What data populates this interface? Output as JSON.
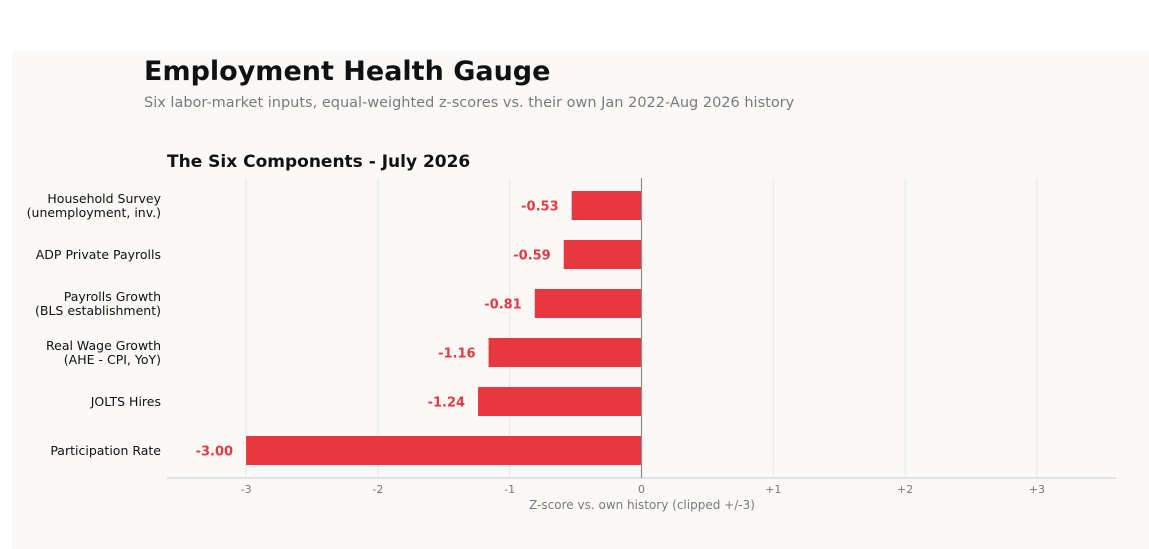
{
  "page": {
    "title": "Employment Health Gauge",
    "subtitle": "Six labor-market inputs, equal-weighted z-scores vs. their own Jan 2022-Aug 2026 history"
  },
  "colors": {
    "bar_negative": "#e8383f",
    "label_negative": "#e33a40",
    "background_panel": "#faf9f7",
    "grid": "#e6e6e6",
    "zero_line": "#8a8a8a",
    "axis": "#cccccc",
    "tick_text": "#777777"
  },
  "chart_data": {
    "type": "bar",
    "orientation": "horizontal",
    "title": "The Six Components - July 2026",
    "xlabel": "Z-score vs. own history (clipped +/-3)",
    "ylabel": "",
    "xlim": [
      -3.6,
      3.6
    ],
    "grid": true,
    "xticks": [
      -3,
      -2,
      -1,
      0,
      1,
      2,
      3
    ],
    "xtick_labels": [
      "-3",
      "-2",
      "-1",
      "0",
      "+1",
      "+2",
      "+3"
    ],
    "categories": [
      [
        "Household Survey",
        "(unemployment, inv.)"
      ],
      [
        "ADP Private Payrolls"
      ],
      [
        "Payrolls Growth",
        "(BLS establishment)"
      ],
      [
        "Real Wage Growth",
        "(AHE - CPI, YoY)"
      ],
      [
        "JOLTS Hires"
      ],
      [
        "Participation Rate"
      ]
    ],
    "values": [
      -0.53,
      -0.59,
      -0.81,
      -1.16,
      -1.24,
      -3.0
    ],
    "value_labels": [
      "-0.53",
      "-0.59",
      "-0.81",
      "-1.16",
      "-1.24",
      "-3.00"
    ]
  }
}
